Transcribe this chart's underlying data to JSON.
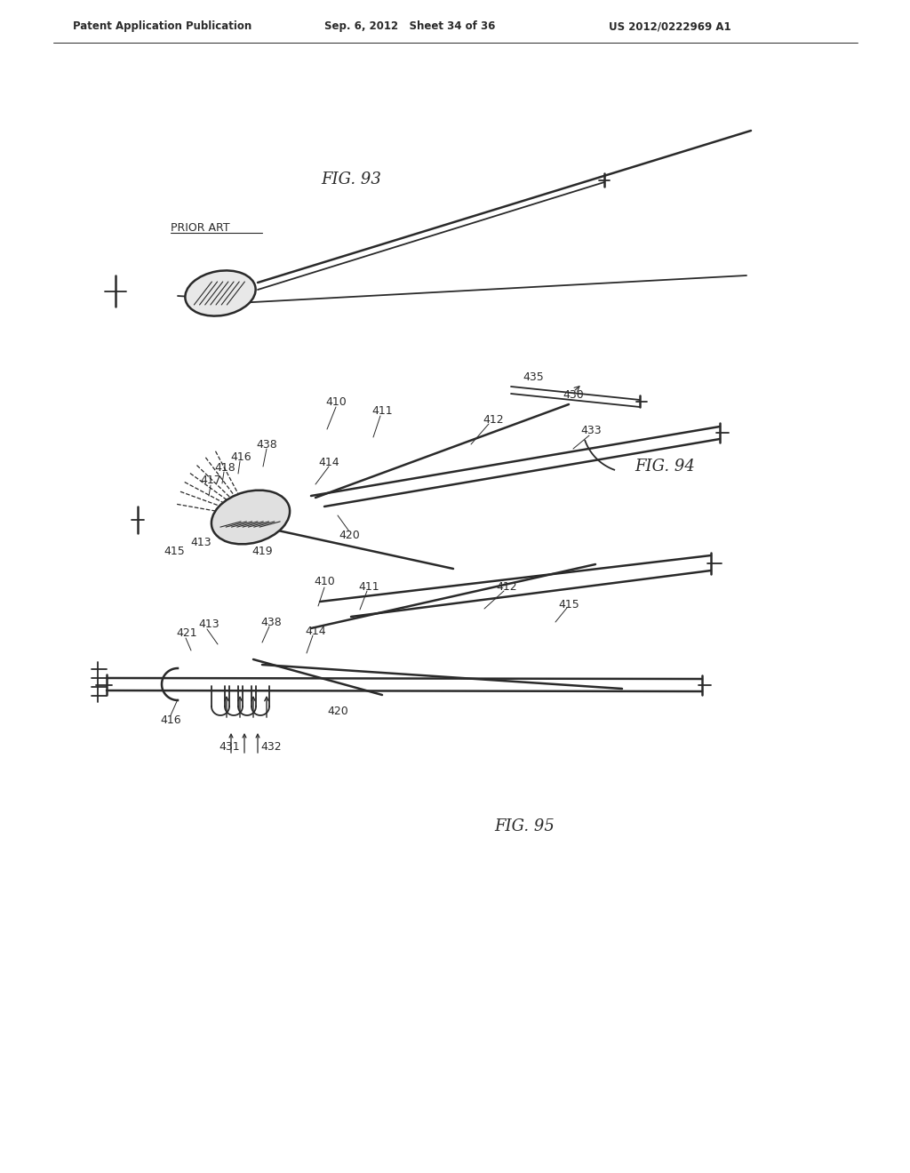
{
  "bg_color": "#ffffff",
  "header_left": "Patent Application Publication",
  "header_center": "Sep. 6, 2012   Sheet 34 of 36",
  "header_right": "US 2012/0222969 A1",
  "fig93_label": "FIG. 93",
  "fig94_label": "FIG. 94",
  "fig95_label": "FIG. 95",
  "prior_art_label": "PRIOR ART",
  "line_color": "#2a2a2a",
  "label_color": "#2a2a2a"
}
